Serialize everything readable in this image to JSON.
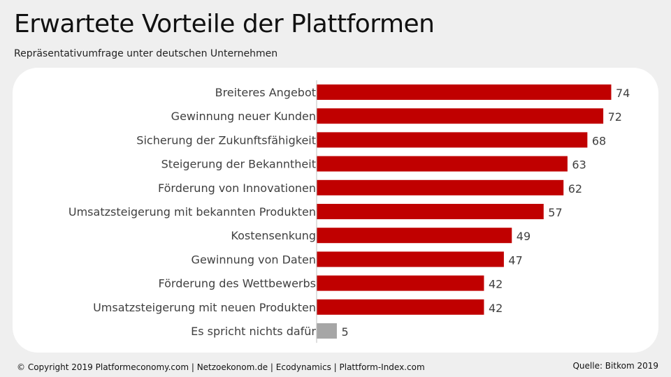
{
  "header": {
    "title": "Erwartete Vorteile der Plattformen",
    "subtitle": "Repräsentativumfrage unter deutschen Unternehmen"
  },
  "footer": {
    "copyright": "© Copyright 2019 Platformeconomy.com | Netzoekonom.de | Ecodynamics | Plattform-Index.com",
    "source": "Quelle: Bitkom 2019"
  },
  "colors": {
    "bar_primary": "#c00000",
    "bar_neutral": "#a6a6a6",
    "panel_background": "#ffffff",
    "page_background": "#efefef"
  },
  "chart_data": {
    "type": "bar",
    "orientation": "horizontal",
    "categories": [
      "Breiteres Angebot",
      "Gewinnung neuer Kunden",
      "Sicherung der Zukunftsfähigkeit",
      "Steigerung der Bekanntheit",
      "Förderung von Innovationen",
      "Umsatzsteigerung mit bekannten Produkten",
      "Kostensenkung",
      "Gewinnung von Daten",
      "Förderung des Wettbewerbs",
      "Umsatzsteigerung mit neuen Produkten",
      "Es spricht nichts dafür"
    ],
    "values": [
      74,
      72,
      68,
      63,
      62,
      57,
      49,
      47,
      42,
      42,
      5
    ],
    "bar_colors": [
      "#c00000",
      "#c00000",
      "#c00000",
      "#c00000",
      "#c00000",
      "#c00000",
      "#c00000",
      "#c00000",
      "#c00000",
      "#c00000",
      "#a6a6a6"
    ],
    "title": "",
    "xlabel": "",
    "ylabel": "",
    "xlim": [
      0,
      74
    ],
    "grid": false,
    "legend": "none",
    "data_labels": true
  }
}
